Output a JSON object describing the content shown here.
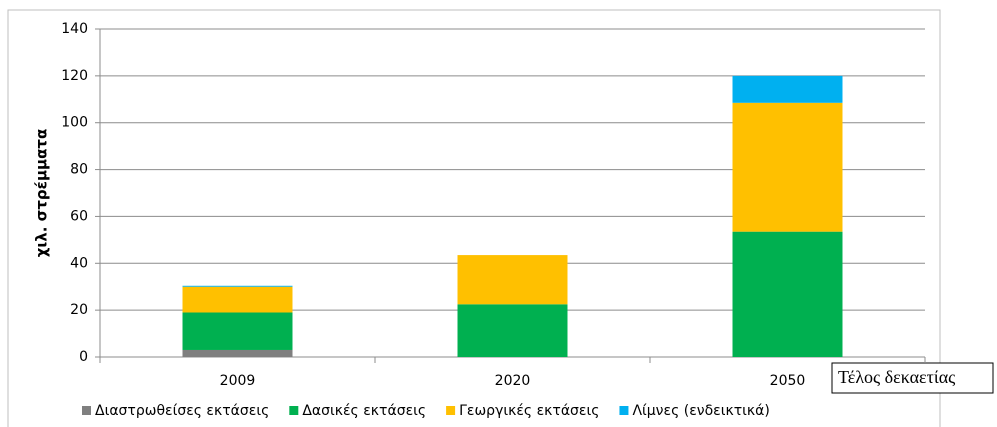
{
  "chart_data": {
    "type": "stacked_bar",
    "y_label": "χιλ. στρέμματα",
    "x_label": "Τέλος δεκαετίας",
    "categories": [
      "2009",
      "2020",
      "2050"
    ],
    "series": [
      {
        "name": "Διαστρωθείσες εκτάσεις",
        "color": "#7f7f7f",
        "values": [
          3,
          0,
          0
        ]
      },
      {
        "name": "Δασικές εκτάσεις",
        "color": "#00b050",
        "values": [
          16,
          22.5,
          53.5
        ]
      },
      {
        "name": "Γεωργικές εκτάσεις",
        "color": "#ffc000",
        "values": [
          11,
          21,
          55
        ]
      },
      {
        "name": "Λίμνες (ενδεικτικά)",
        "color": "#00b0f0",
        "values": [
          0.4,
          0,
          11.5
        ]
      }
    ],
    "ylim": [
      0,
      140
    ],
    "yticks": [
      0,
      20,
      40,
      60,
      80,
      100,
      120,
      140
    ],
    "grid": true,
    "legend": "bottom"
  }
}
